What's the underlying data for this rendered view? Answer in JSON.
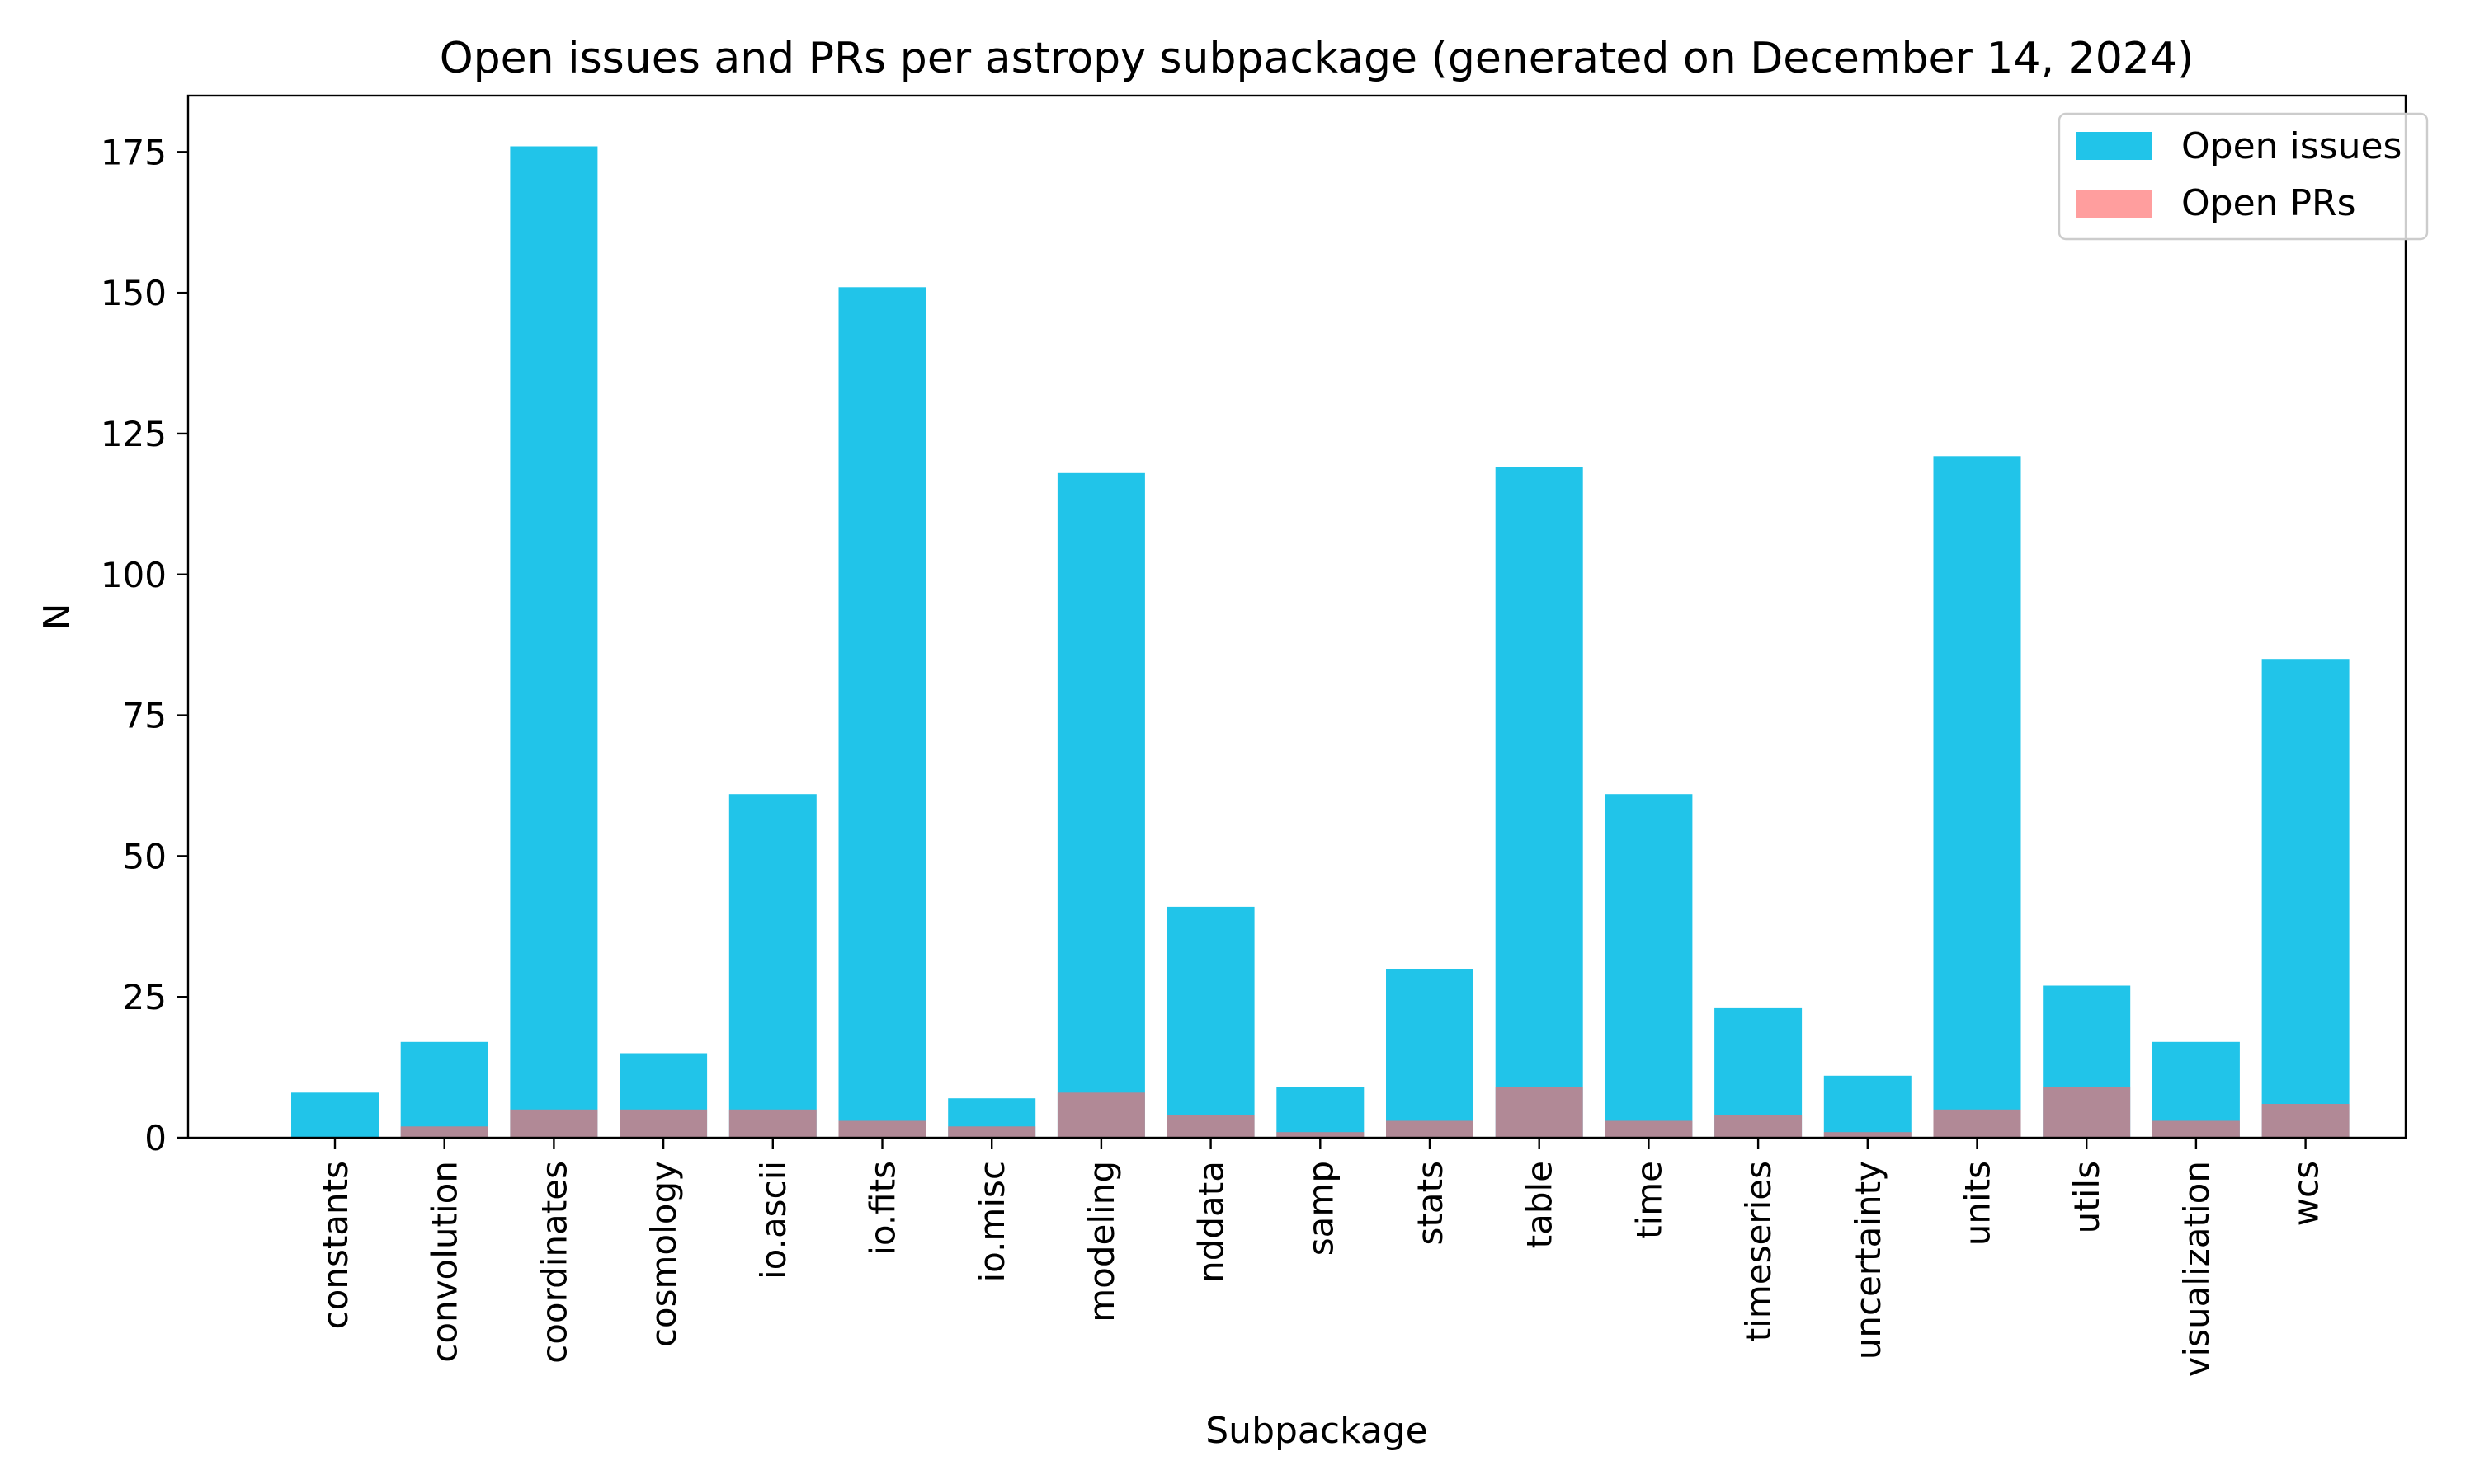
{
  "chart_data": {
    "type": "bar",
    "title": "Open issues and PRs per astropy subpackage (generated on December 14, 2024)",
    "xlabel": "Subpackage",
    "ylabel": "N",
    "ylim": [
      0,
      185
    ],
    "yticks": [
      0,
      25,
      50,
      75,
      100,
      125,
      150,
      175
    ],
    "ytick_labels": [
      "0",
      "25",
      "50",
      "75",
      "100",
      "125",
      "150",
      "175"
    ],
    "grid": false,
    "legend_position": "top-right",
    "categories": [
      "constants",
      "convolution",
      "coordinates",
      "cosmology",
      "io.ascii",
      "io.fits",
      "io.misc",
      "modeling",
      "nddata",
      "samp",
      "stats",
      "table",
      "time",
      "timeseries",
      "uncertainty",
      "units",
      "utils",
      "visualization",
      "wcs"
    ],
    "series": [
      {
        "name": "Open issues",
        "color": "#00bbe6",
        "opacity": 0.87,
        "values": [
          8,
          17,
          176,
          15,
          61,
          151,
          7,
          118,
          41,
          9,
          30,
          119,
          61,
          23,
          11,
          121,
          27,
          17,
          85
        ]
      },
      {
        "name": "Open PRs",
        "color": "#ff6a6a",
        "opacity": 0.65,
        "values": [
          0,
          2,
          5,
          5,
          5,
          3,
          2,
          8,
          4,
          1,
          3,
          9,
          3,
          4,
          1,
          5,
          9,
          3,
          6
        ]
      }
    ]
  }
}
